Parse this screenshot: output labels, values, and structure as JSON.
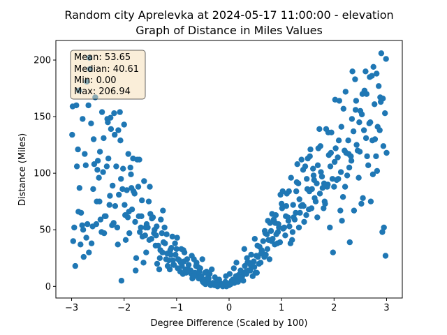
{
  "chart_data": {
    "type": "scatter",
    "title_line1": "Random city Aprelevka at 2024-05-17 11:00:00  - elevation",
    "title_line2": "Graph of Distance in Miles Values",
    "xlabel": "Degree Difference (Scaled by 100)",
    "ylabel": "Distance (Miles)",
    "xlim": [
      -3.3,
      3.3
    ],
    "ylim": [
      -10.3,
      217.3
    ],
    "xticks": [
      -3,
      -2,
      -1,
      0,
      1,
      2,
      3
    ],
    "yticks": [
      0,
      50,
      100,
      150,
      200
    ],
    "point_color": "#1f77b4",
    "grid": false,
    "stats_box": {
      "mean": "Mean: 53.65",
      "median": "Median: 40.61",
      "min": "Min: 0.00",
      "max": "Max: 206.94",
      "face_color": "#f5deb3",
      "placement": "top-left"
    },
    "x": [
      -2.98,
      -2.95,
      -2.9,
      -2.88,
      -2.85,
      -2.82,
      -2.8,
      -2.78,
      -2.75,
      -2.72,
      -2.7,
      -2.68,
      -2.65,
      -2.62,
      -2.6,
      -2.58,
      -2.55,
      -2.52,
      -2.5,
      -2.48,
      -2.45,
      -2.42,
      -2.4,
      -2.38,
      -2.35,
      -2.32,
      -2.3,
      -2.28,
      -2.25,
      -2.22,
      -2.2,
      -2.18,
      -2.15,
      -2.12,
      -2.1,
      -2.08,
      -2.05,
      -2.02,
      -2.0,
      -1.98,
      -1.95,
      -1.92,
      -1.9,
      -1.88,
      -1.85,
      -1.82,
      -1.8,
      -1.78,
      -1.75,
      -1.72,
      -1.7,
      -1.68,
      -1.65,
      -1.62,
      -1.6,
      -1.58,
      -1.55,
      -1.52,
      -1.5,
      -1.48,
      -1.45,
      -1.42,
      -1.4,
      -1.38,
      -1.35,
      -1.32,
      -1.3,
      -1.28,
      -1.25,
      -1.22,
      -1.2,
      -1.18,
      -1.15,
      -1.12,
      -1.1,
      -1.08,
      -1.05,
      -1.02,
      -1.0,
      -0.98,
      -0.95,
      -0.92,
      -0.9,
      -0.88,
      -0.85,
      -0.82,
      -0.8,
      -0.78,
      -0.75,
      -0.72,
      -0.7,
      -0.68,
      -0.65,
      -0.62,
      -0.6,
      -0.58,
      -0.55,
      -0.52,
      -0.5,
      -0.48,
      -0.45,
      -0.42,
      -0.4,
      -0.38,
      -0.35,
      -0.32,
      -0.3,
      -0.28,
      -0.25,
      -0.22,
      -0.2,
      -0.18,
      -0.15,
      -0.12,
      -0.1,
      -0.08,
      -0.05,
      -0.02,
      0.0,
      0.02,
      0.05,
      0.08,
      0.1,
      0.12,
      0.15,
      0.18,
      0.2,
      0.22,
      0.25,
      0.28,
      0.3,
      0.32,
      0.35,
      0.38,
      0.4,
      0.42,
      0.45,
      0.48,
      0.5,
      0.52,
      0.55,
      0.58,
      0.6,
      0.62,
      0.65,
      0.68,
      0.7,
      0.72,
      0.75,
      0.78,
      0.8,
      0.82,
      0.85,
      0.88,
      0.9,
      0.92,
      0.95,
      0.98,
      1.0,
      1.02,
      1.05,
      1.08,
      1.1,
      1.12,
      1.15,
      1.18,
      1.2,
      1.22,
      1.25,
      1.28,
      1.3,
      1.32,
      1.35,
      1.38,
      1.4,
      1.42,
      1.45,
      1.48,
      1.5,
      1.52,
      1.55,
      1.58,
      1.6,
      1.62,
      1.65,
      1.68,
      1.7,
      1.72,
      1.75,
      1.78,
      1.8,
      1.82,
      1.85,
      1.88,
      1.9,
      1.92,
      1.95,
      1.98,
      2.0,
      2.02,
      2.05,
      2.08,
      2.1,
      2.12,
      2.15,
      2.18,
      2.2,
      2.22,
      2.25,
      2.28,
      2.3,
      2.32,
      2.35,
      2.38,
      2.4,
      2.42,
      2.45,
      2.48,
      2.5,
      2.52,
      2.55,
      2.58,
      2.6,
      2.62,
      2.65,
      2.68,
      2.7,
      2.72,
      2.75,
      2.78,
      2.8,
      2.82,
      2.85,
      2.88,
      2.9,
      2.92,
      2.95,
      2.98,
      3.0,
      -2.97,
      -2.93,
      -2.87,
      -2.83,
      -2.77,
      -2.73,
      -2.67,
      -2.63,
      -2.57,
      -2.53,
      -2.47,
      -2.43,
      -2.37,
      -2.33,
      -2.27,
      -2.23,
      -2.17,
      -2.13,
      -2.07,
      -2.03,
      -1.97,
      -1.93,
      -1.87,
      -1.83,
      -1.77,
      -1.73,
      -1.67,
      -1.63,
      -1.57,
      -1.53,
      -1.47,
      -1.43,
      -1.37,
      -1.33,
      -1.27,
      -1.23,
      -1.17,
      -1.13,
      -1.07,
      -1.03,
      -0.97,
      -0.93,
      -0.87,
      -0.83,
      -0.77,
      -0.73,
      -0.67,
      -0.63,
      -0.57,
      -0.53,
      -0.47,
      -0.43,
      -0.37,
      -0.33,
      -0.27,
      -0.23,
      -0.17,
      -0.13,
      -0.07,
      -0.03,
      0.03,
      0.07,
      0.13,
      0.17,
      0.23,
      0.27,
      0.33,
      0.37,
      0.43,
      0.47,
      0.53,
      0.57,
      0.63,
      0.67,
      0.73,
      0.77,
      0.83,
      0.87,
      0.93,
      0.97,
      1.03,
      1.07,
      1.13,
      1.17,
      1.23,
      1.27,
      1.33,
      1.37,
      1.43,
      1.47,
      1.53,
      1.57,
      1.63,
      1.67,
      1.73,
      1.77,
      1.83,
      1.87,
      1.93,
      1.97,
      2.03,
      2.07,
      2.13,
      2.17,
      2.23,
      2.27,
      2.33,
      2.37,
      2.43,
      2.47,
      2.53,
      2.57,
      2.63,
      2.67,
      2.73,
      2.77,
      2.83,
      2.87,
      2.93,
      2.97,
      -2.99,
      -2.91,
      -2.86,
      -2.79,
      -2.71,
      -2.66,
      -2.59,
      -2.51,
      -2.46,
      -2.39,
      -2.31,
      -2.26,
      -2.19,
      -2.11,
      -2.06,
      -1.99,
      -1.91,
      -1.86,
      -1.79,
      -1.71,
      -1.66,
      -1.59,
      -1.51,
      -1.46,
      -1.39,
      -1.31,
      -1.26,
      -1.19,
      -1.11,
      -1.06,
      -0.99,
      -0.91,
      -0.86,
      -0.79,
      -0.71,
      -0.66,
      -0.59,
      -0.51,
      -0.46,
      -0.39,
      -0.31,
      -0.26,
      -0.19,
      -0.11,
      -0.06,
      0.01,
      0.09,
      0.14,
      0.21,
      0.29,
      0.34,
      0.41,
      0.49,
      0.54,
      0.61,
      0.69,
      0.74,
      0.81,
      0.89,
      0.94,
      1.01,
      1.09,
      1.14,
      1.21,
      1.29,
      1.34,
      1.41,
      1.49,
      1.54,
      1.61,
      1.69,
      1.74,
      1.81,
      1.89,
      1.94,
      2.01,
      2.09,
      2.14,
      2.21,
      2.29,
      2.34,
      2.41,
      2.49,
      2.54,
      2.61,
      2.69,
      2.74,
      2.81,
      2.89,
      2.94,
      2.99
    ],
    "y": [
      159,
      52,
      106,
      121,
      87,
      65,
      54,
      50,
      117,
      43,
      55,
      160,
      192,
      38,
      53,
      130,
      167,
      75,
      111,
      96,
      59,
      154,
      101,
      47,
      62,
      148,
      113,
      72,
      139,
      89,
      56,
      134,
      106,
      37,
      81,
      154,
      5,
      104,
      143,
      63,
      85,
      117,
      47,
      105,
      68,
      84,
      82,
      14,
      112,
      62,
      48,
      52,
      44,
      93,
      45,
      30,
      52,
      41,
      64,
      42,
      61,
      50,
      36,
      53,
      36,
      25,
      59,
      47,
      39,
      38,
      24,
      29,
      23,
      32,
      34,
      44,
      19,
      28,
      33,
      16,
      23,
      21,
      18,
      11,
      30,
      12,
      24,
      15,
      14,
      11,
      7,
      9,
      12,
      21,
      9,
      7,
      16,
      6,
      4,
      3,
      2,
      5,
      8,
      3,
      1,
      2,
      3,
      1,
      1,
      0,
      1,
      2,
      1,
      0,
      1,
      1,
      0,
      2,
      1,
      3,
      5,
      4,
      3,
      7,
      6,
      10,
      6,
      14,
      9,
      11,
      18,
      13,
      21,
      21,
      14,
      28,
      9,
      17,
      12,
      27,
      26,
      35,
      21,
      32,
      40,
      49,
      28,
      46,
      41,
      56,
      49,
      64,
      59,
      56,
      46,
      38,
      52,
      81,
      73,
      84,
      52,
      62,
      82,
      61,
      53,
      96,
      41,
      72,
      59,
      84,
      108,
      91,
      65,
      112,
      72,
      71,
      106,
      95,
      113,
      68,
      121,
      86,
      104,
      94,
      75,
      61,
      122,
      139,
      101,
      87,
      69,
      75,
      139,
      90,
      116,
      52,
      136,
      30,
      88,
      165,
      94,
      95,
      164,
      67,
      58,
      157,
      120,
      172,
      98,
      117,
      39,
      115,
      190,
      67,
      183,
      164,
      120,
      145,
      155,
      73,
      78,
      173,
      190,
      170,
      107,
      185,
      75,
      186,
      194,
      130,
      115,
      102,
      177,
      167,
      206,
      48,
      52,
      27,
      118,
      40,
      18,
      66,
      37,
      26,
      107,
      30,
      144,
      108,
      55,
      75,
      48,
      62,
      106,
      80,
      54,
      71,
      52,
      129,
      86,
      41,
      61,
      99,
      113,
      25,
      88,
      62,
      21,
      55,
      75,
      60,
      47,
      20,
      15,
      30,
      52,
      18,
      15,
      23,
      38,
      24,
      13,
      32,
      15,
      19,
      14,
      24,
      18,
      13,
      9,
      6,
      13,
      11,
      15,
      8,
      5,
      3,
      2,
      4,
      1,
      2,
      6,
      9,
      4,
      8,
      5,
      11,
      14,
      17,
      22,
      12,
      20,
      31,
      26,
      33,
      24,
      42,
      37,
      48,
      39,
      51,
      45,
      58,
      38,
      61,
      65,
      52,
      71,
      57,
      63,
      84,
      69,
      78,
      91,
      82,
      97,
      73,
      88,
      106,
      95,
      122,
      114,
      101,
      79,
      118,
      129,
      111,
      137,
      125,
      96,
      152,
      138,
      115,
      144,
      129,
      161,
      141,
      138,
      166,
      153,
      134,
      160,
      173,
      148,
      181,
      202,
      86,
      103,
      119,
      131,
      145,
      149,
      153,
      138,
      95,
      72,
      66,
      87,
      57,
      112,
      76,
      52,
      88,
      61,
      45,
      32,
      67,
      46,
      28,
      19,
      43,
      33,
      22,
      14,
      27,
      9,
      17,
      24,
      12,
      7,
      3,
      1,
      6,
      2,
      9,
      11,
      16,
      21,
      8,
      33,
      25,
      19,
      42,
      36,
      29,
      47,
      58,
      40,
      63,
      55,
      69,
      71,
      84,
      48,
      92,
      77,
      103,
      86,
      115,
      98,
      107,
      124,
      91,
      136,
      118,
      110,
      129,
      141,
      88,
      105,
      148,
      156,
      119,
      170,
      131,
      145,
      99,
      188,
      163,
      124,
      201
    ]
  }
}
